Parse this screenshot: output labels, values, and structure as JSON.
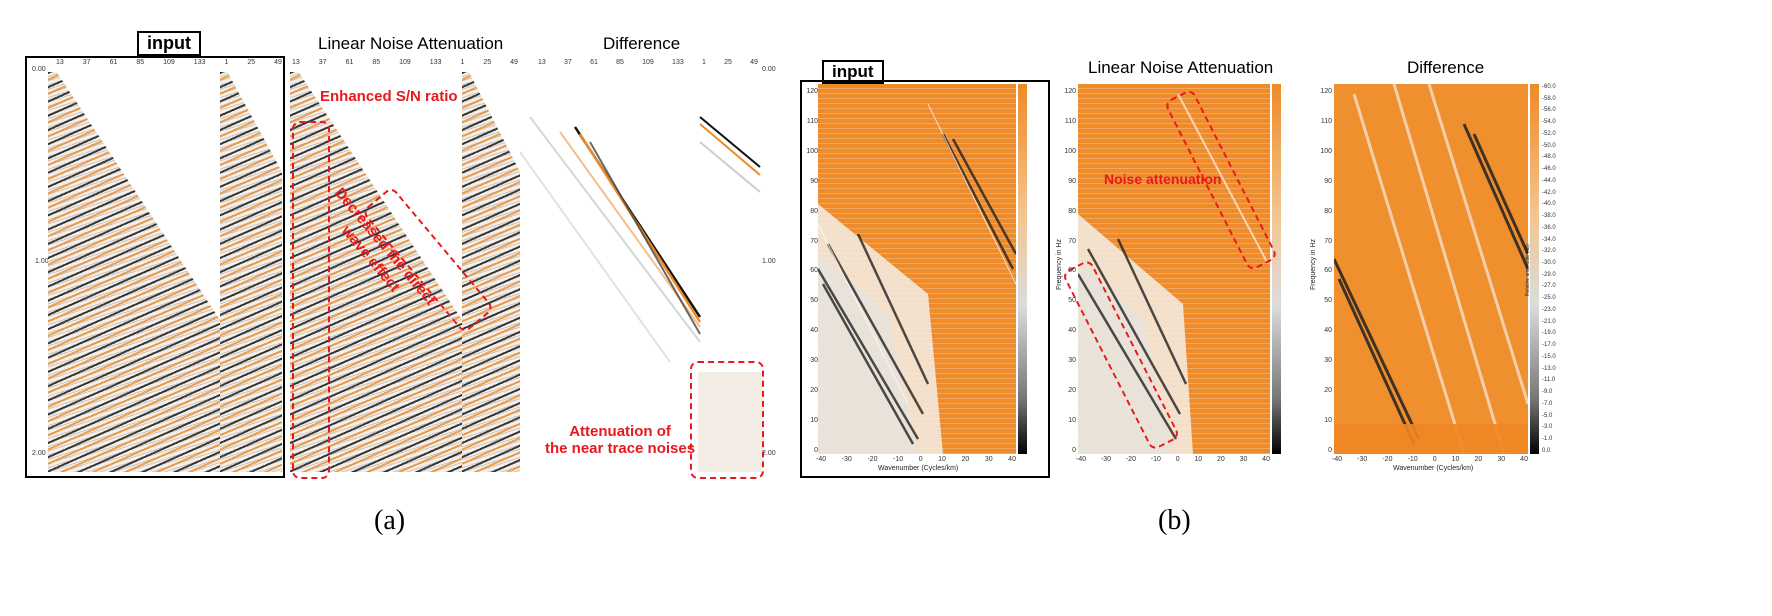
{
  "part_a": {
    "titles": {
      "input": "input",
      "lna": "Linear Noise Attenuation",
      "difference": "Difference"
    },
    "annotations": {
      "enhanced": "Enhanced S/N ratio",
      "direct_wave_line1": "Decreased the direct",
      "direct_wave_line2": "wave effect",
      "near_trace_line1": "Attenuation of",
      "near_trace_line2": "the near trace noises"
    },
    "trace_ticks": [
      "13",
      "37",
      "61",
      "85",
      "109",
      "133",
      "1",
      "25",
      "49"
    ],
    "time_ticks": [
      "0.00",
      "1.00",
      "2.00"
    ],
    "caption": "(a)"
  },
  "part_b": {
    "titles": {
      "input": "input",
      "lna": "Linear Noise Attenuation",
      "difference": "Difference"
    },
    "annotation": "Noise attenuation",
    "y_axis_label": "Frequency in Hz",
    "x_axis_label_input": "Wavenumber (Cycles/km)",
    "x_axis_label_diff": "Wavenumber (Cycles/km)",
    "y_ticks": [
      "120",
      "110",
      "100",
      "90",
      "80",
      "70",
      "60",
      "50",
      "40",
      "30",
      "20",
      "10",
      "0"
    ],
    "x_ticks": [
      "-40",
      "-30",
      "-20",
      "-10",
      "0",
      "10",
      "20",
      "30",
      "40"
    ],
    "colorbar_ticks": [
      "-60.0",
      "-58.0",
      "-56.0",
      "-54.0",
      "-52.0",
      "-50.0",
      "-48.0",
      "-46.0",
      "-44.0",
      "-42.0",
      "-40.0",
      "-38.0",
      "-36.0",
      "-34.0",
      "-32.0",
      "-30.0",
      "-29.0",
      "-27.0",
      "-25.0",
      "-23.0",
      "-21.0",
      "-19.0",
      "-17.0",
      "-15.0",
      "-13.0",
      "-11.0",
      "-9.0",
      "-7.0",
      "-5.0",
      "-3.0",
      "-1.0",
      "0.0"
    ],
    "colorbar_label": "Relative amplitude (dB)",
    "caption": "(b)"
  }
}
